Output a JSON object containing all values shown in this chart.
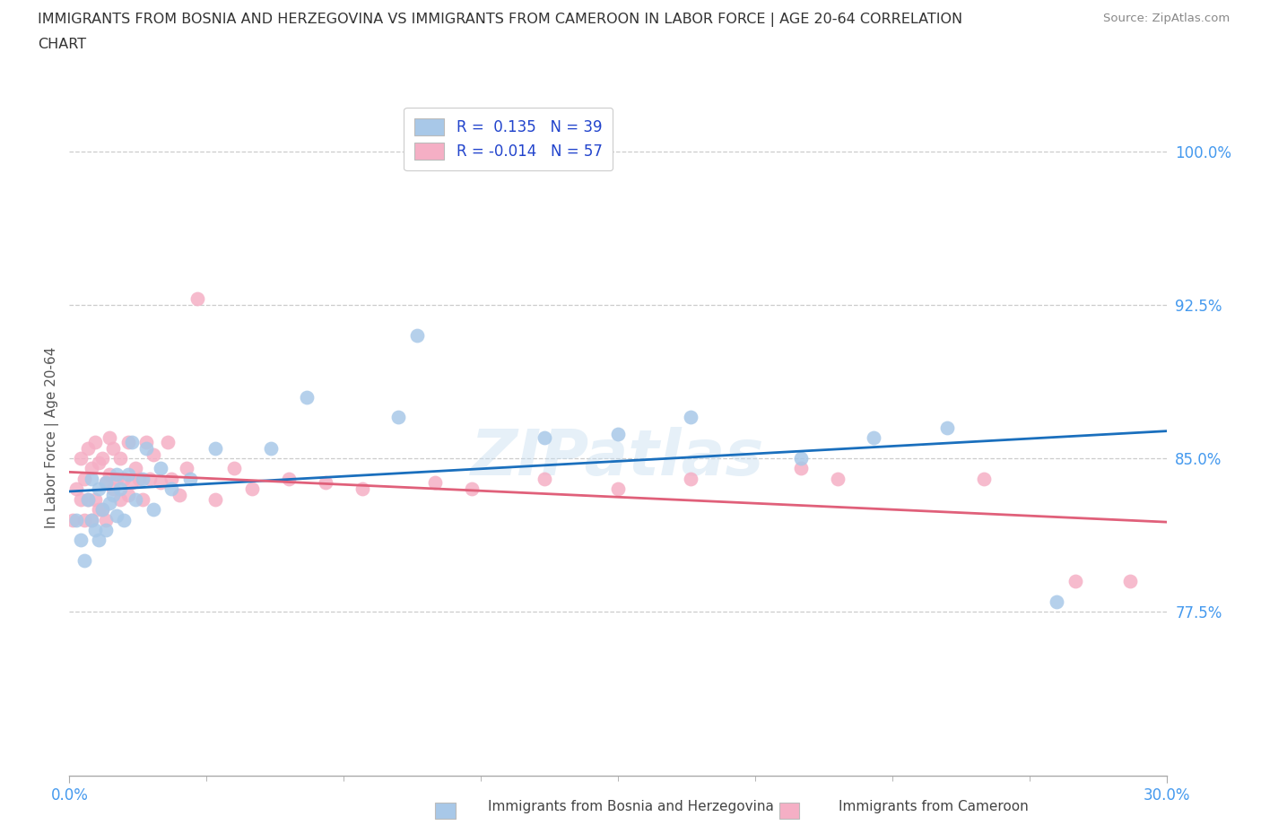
{
  "title_line1": "IMMIGRANTS FROM BOSNIA AND HERZEGOVINA VS IMMIGRANTS FROM CAMEROON IN LABOR FORCE | AGE 20-64 CORRELATION",
  "title_line2": "CHART",
  "source": "Source: ZipAtlas.com",
  "xlim": [
    0.0,
    0.3
  ],
  "ylim": [
    0.695,
    1.025
  ],
  "ytick_vals": [
    0.775,
    0.85,
    0.925,
    1.0
  ],
  "ytick_labels": [
    "77.5%",
    "85.0%",
    "92.5%",
    "100.0%"
  ],
  "xtick_vals": [
    0.0,
    0.3
  ],
  "xtick_labels": [
    "0.0%",
    "30.0%"
  ],
  "ylabel": "In Labor Force | Age 20-64",
  "legend_r1": "R =  0.135   N = 39",
  "legend_r2": "R = -0.014   N = 57",
  "bosnia_color": "#a8c8e8",
  "cameroon_color": "#f5afc5",
  "bosnia_line_color": "#1a6fbd",
  "cameroon_line_color": "#e0607a",
  "bg_color": "#ffffff",
  "grid_color": "#cccccc",
  "tick_color": "#4499ee",
  "source_color": "#888888",
  "title_color": "#333333",
  "ylabel_color": "#555555",
  "legend_text_color": "#2244cc",
  "bosnia_x": [
    0.002,
    0.003,
    0.004,
    0.005,
    0.006,
    0.006,
    0.007,
    0.008,
    0.008,
    0.009,
    0.01,
    0.01,
    0.011,
    0.012,
    0.013,
    0.013,
    0.014,
    0.015,
    0.016,
    0.017,
    0.018,
    0.02,
    0.021,
    0.023,
    0.025,
    0.028,
    0.033,
    0.04,
    0.055,
    0.065,
    0.09,
    0.095,
    0.13,
    0.15,
    0.17,
    0.2,
    0.22,
    0.24,
    0.27
  ],
  "bosnia_y": [
    0.82,
    0.81,
    0.8,
    0.83,
    0.82,
    0.84,
    0.815,
    0.81,
    0.835,
    0.825,
    0.815,
    0.838,
    0.828,
    0.832,
    0.822,
    0.842,
    0.835,
    0.82,
    0.842,
    0.858,
    0.83,
    0.84,
    0.855,
    0.825,
    0.845,
    0.835,
    0.84,
    0.855,
    0.855,
    0.88,
    0.87,
    0.91,
    0.86,
    0.862,
    0.87,
    0.85,
    0.86,
    0.865,
    0.78
  ],
  "cameroon_x": [
    0.001,
    0.002,
    0.003,
    0.003,
    0.004,
    0.004,
    0.005,
    0.005,
    0.006,
    0.006,
    0.007,
    0.007,
    0.008,
    0.008,
    0.009,
    0.009,
    0.01,
    0.01,
    0.011,
    0.011,
    0.012,
    0.012,
    0.013,
    0.014,
    0.014,
    0.015,
    0.016,
    0.016,
    0.017,
    0.018,
    0.019,
    0.02,
    0.021,
    0.022,
    0.023,
    0.025,
    0.027,
    0.028,
    0.03,
    0.032,
    0.035,
    0.04,
    0.045,
    0.05,
    0.06,
    0.07,
    0.08,
    0.1,
    0.11,
    0.13,
    0.15,
    0.17,
    0.2,
    0.21,
    0.25,
    0.275,
    0.29
  ],
  "cameroon_y": [
    0.82,
    0.835,
    0.83,
    0.85,
    0.82,
    0.84,
    0.83,
    0.855,
    0.82,
    0.845,
    0.83,
    0.858,
    0.825,
    0.848,
    0.825,
    0.85,
    0.838,
    0.82,
    0.842,
    0.86,
    0.835,
    0.855,
    0.84,
    0.83,
    0.85,
    0.84,
    0.832,
    0.858,
    0.838,
    0.845,
    0.84,
    0.83,
    0.858,
    0.84,
    0.852,
    0.838,
    0.858,
    0.84,
    0.832,
    0.845,
    0.928,
    0.83,
    0.845,
    0.835,
    0.84,
    0.838,
    0.835,
    0.838,
    0.835,
    0.84,
    0.835,
    0.84,
    0.845,
    0.84,
    0.84,
    0.79,
    0.79
  ]
}
